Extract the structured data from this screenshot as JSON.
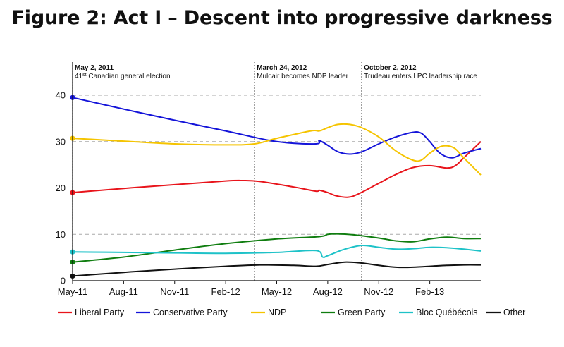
{
  "chart_data": {
    "type": "line",
    "title": "Figure 2: Act I – Descent into progressive darkness",
    "xlabel": "",
    "ylabel": "",
    "ylim": [
      0,
      40
    ],
    "yticks": [
      0,
      10,
      20,
      30,
      40
    ],
    "x_tick_labels": [
      "May-11",
      "Aug-11",
      "Nov-11",
      "Feb-12",
      "May-12",
      "Aug-12",
      "Nov-12",
      "Feb-13"
    ],
    "x_tick_months": [
      0,
      3,
      6,
      9,
      12,
      15,
      18,
      21
    ],
    "x_range_months": [
      0,
      23
    ],
    "grid": "horizontal dashed",
    "legend_position": "bottom",
    "annotations": [
      {
        "month": 0,
        "title": "May 2, 2011",
        "text_pre": "41",
        "text_sup": "st",
        "text_post": " Canadian general election"
      },
      {
        "month": 10.7,
        "title": "March 24, 2012",
        "text_pre": "Mulcair becomes NDP leader",
        "text_sup": "",
        "text_post": ""
      },
      {
        "month": 17.0,
        "title": "October 2, 2012",
        "text_pre": "Trudeau enters LPC leadership race",
        "text_sup": "",
        "text_post": ""
      }
    ],
    "series": [
      {
        "name": "Liberal Party",
        "color": "#e8141b",
        "start_marker": true,
        "points": [
          [
            0,
            19
          ],
          [
            3,
            19.9
          ],
          [
            6,
            20.7
          ],
          [
            9,
            21.5
          ],
          [
            10,
            21.6
          ],
          [
            11,
            21.4
          ],
          [
            13,
            20.2
          ],
          [
            14.3,
            19.3
          ],
          [
            14.5,
            19.5
          ],
          [
            15,
            19
          ],
          [
            15.5,
            18.3
          ],
          [
            16.2,
            18
          ],
          [
            16.8,
            18.7
          ],
          [
            18,
            21
          ],
          [
            19,
            22.9
          ],
          [
            20,
            24.4
          ],
          [
            21,
            24.8
          ],
          [
            22,
            24.3
          ],
          [
            22.5,
            24.8
          ],
          [
            23,
            26.5
          ],
          [
            24,
            30
          ]
        ]
      },
      {
        "name": "Conservative Party",
        "color": "#1414d9",
        "start_marker": true,
        "points": [
          [
            0,
            39.5
          ],
          [
            3,
            37
          ],
          [
            6,
            34.6
          ],
          [
            9,
            32.3
          ],
          [
            12,
            30
          ],
          [
            14.3,
            29.5
          ],
          [
            14.5,
            30.2
          ],
          [
            15,
            29.2
          ],
          [
            15.6,
            27.8
          ],
          [
            16.3,
            27.3
          ],
          [
            17,
            27.8
          ],
          [
            18,
            29.5
          ],
          [
            19,
            31
          ],
          [
            20,
            32
          ],
          [
            20.5,
            31.8
          ],
          [
            21,
            30
          ],
          [
            21.6,
            27.5
          ],
          [
            22.3,
            26.5
          ],
          [
            23,
            27.5
          ],
          [
            24,
            28.5
          ]
        ]
      },
      {
        "name": "NDP",
        "color": "#f5c400",
        "start_marker": true,
        "points": [
          [
            0,
            30.7
          ],
          [
            3,
            30.1
          ],
          [
            6,
            29.5
          ],
          [
            9,
            29.3
          ],
          [
            10.7,
            29.5
          ],
          [
            12,
            30.7
          ],
          [
            14,
            32.3
          ],
          [
            14.5,
            32.3
          ],
          [
            15,
            33
          ],
          [
            15.6,
            33.7
          ],
          [
            16.3,
            33.7
          ],
          [
            17,
            33
          ],
          [
            18,
            31
          ],
          [
            19,
            28
          ],
          [
            20,
            26
          ],
          [
            20.5,
            26
          ],
          [
            21,
            27.5
          ],
          [
            21.7,
            29
          ],
          [
            22.4,
            28.7
          ],
          [
            23,
            26.5
          ],
          [
            24,
            22.8
          ]
        ]
      },
      {
        "name": "Green Party",
        "color": "#0f7d0f",
        "start_marker": true,
        "points": [
          [
            0,
            4
          ],
          [
            3,
            5.1
          ],
          [
            6,
            6.6
          ],
          [
            9,
            8
          ],
          [
            12,
            9
          ],
          [
            14.5,
            9.5
          ],
          [
            15,
            10
          ],
          [
            15.5,
            10.1
          ],
          [
            16.5,
            9.9
          ],
          [
            18,
            9.2
          ],
          [
            19,
            8.6
          ],
          [
            20,
            8.4
          ],
          [
            21,
            9
          ],
          [
            22,
            9.4
          ],
          [
            23,
            9.1
          ],
          [
            24,
            9.1
          ]
        ]
      },
      {
        "name": "Bloc Québécois",
        "color": "#1ec2c8",
        "start_marker": true,
        "points": [
          [
            0,
            6.2
          ],
          [
            3,
            6.1
          ],
          [
            6,
            6
          ],
          [
            9,
            5.9
          ],
          [
            12,
            6.1
          ],
          [
            14.3,
            6.5
          ],
          [
            14.7,
            5.1
          ],
          [
            15,
            5.4
          ],
          [
            16,
            6.8
          ],
          [
            17,
            7.6
          ],
          [
            18,
            7.2
          ],
          [
            19,
            6.8
          ],
          [
            20,
            6.9
          ],
          [
            21,
            7.2
          ],
          [
            22,
            7.1
          ],
          [
            23,
            6.8
          ],
          [
            24,
            6.4
          ]
        ]
      },
      {
        "name": "Other",
        "color": "#111111",
        "start_marker": true,
        "points": [
          [
            0,
            1
          ],
          [
            3,
            1.8
          ],
          [
            6,
            2.5
          ],
          [
            9,
            3.1
          ],
          [
            11,
            3.4
          ],
          [
            13,
            3.3
          ],
          [
            14.3,
            3.1
          ],
          [
            15,
            3.5
          ],
          [
            16,
            4
          ],
          [
            17,
            3.8
          ],
          [
            18,
            3.3
          ],
          [
            19,
            2.9
          ],
          [
            20,
            2.9
          ],
          [
            21,
            3.1
          ],
          [
            22,
            3.3
          ],
          [
            23,
            3.4
          ],
          [
            24,
            3.4
          ]
        ]
      }
    ]
  }
}
